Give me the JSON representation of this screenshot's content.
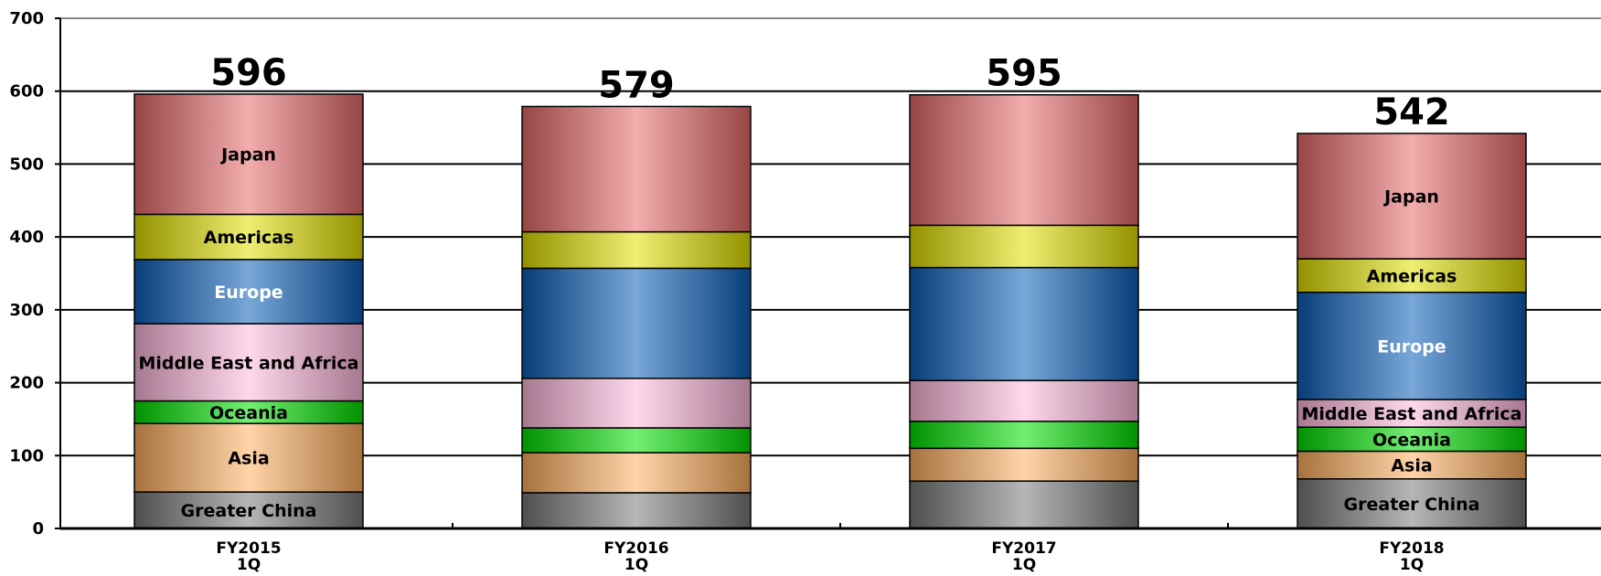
{
  "chart_data": {
    "type": "bar",
    "stacked": true,
    "categories": [
      [
        "FY2015",
        "1Q"
      ],
      [
        "FY2016",
        "1Q"
      ],
      [
        "FY2017",
        "1Q"
      ],
      [
        "FY2018",
        "1Q"
      ]
    ],
    "ylim": [
      0,
      700
    ],
    "yticks": [
      0,
      100,
      200,
      300,
      400,
      500,
      600,
      700
    ],
    "grid": true,
    "totals": [
      596,
      579,
      595,
      542
    ],
    "series": [
      {
        "name": "Greater China",
        "values": [
          50,
          49,
          65,
          68
        ],
        "color": "#7a7a7a",
        "text_color": "#000000",
        "labeled": [
          true,
          false,
          false,
          true
        ]
      },
      {
        "name": "Asia",
        "values": [
          94,
          55,
          45,
          38
        ],
        "color": "#ffb060",
        "text_color": "#000000",
        "labeled": [
          true,
          false,
          false,
          true
        ]
      },
      {
        "name": "Oceania",
        "values": [
          31,
          34,
          37,
          33
        ],
        "color": "#00e000",
        "text_color": "#000000",
        "labeled": [
          true,
          false,
          false,
          true
        ]
      },
      {
        "name": "Middle East and Africa",
        "values": [
          106,
          68,
          56,
          38
        ],
        "color": "#ffb8dc",
        "text_color": "#000000",
        "labeled": [
          true,
          false,
          false,
          true
        ]
      },
      {
        "name": "Europe",
        "values": [
          88,
          151,
          155,
          147
        ],
        "color": "#0a5fb8",
        "text_color": "#ffffff",
        "labeled": [
          true,
          false,
          false,
          true
        ]
      },
      {
        "name": "Americas",
        "values": [
          62,
          50,
          58,
          46
        ],
        "color": "#e0e000",
        "text_color": "#000000",
        "labeled": [
          true,
          false,
          false,
          true
        ]
      },
      {
        "name": "Japan",
        "values": [
          165,
          172,
          179,
          172
        ],
        "color": "#e86a6a",
        "text_color": "#000000",
        "labeled": [
          true,
          false,
          false,
          true
        ]
      }
    ]
  }
}
